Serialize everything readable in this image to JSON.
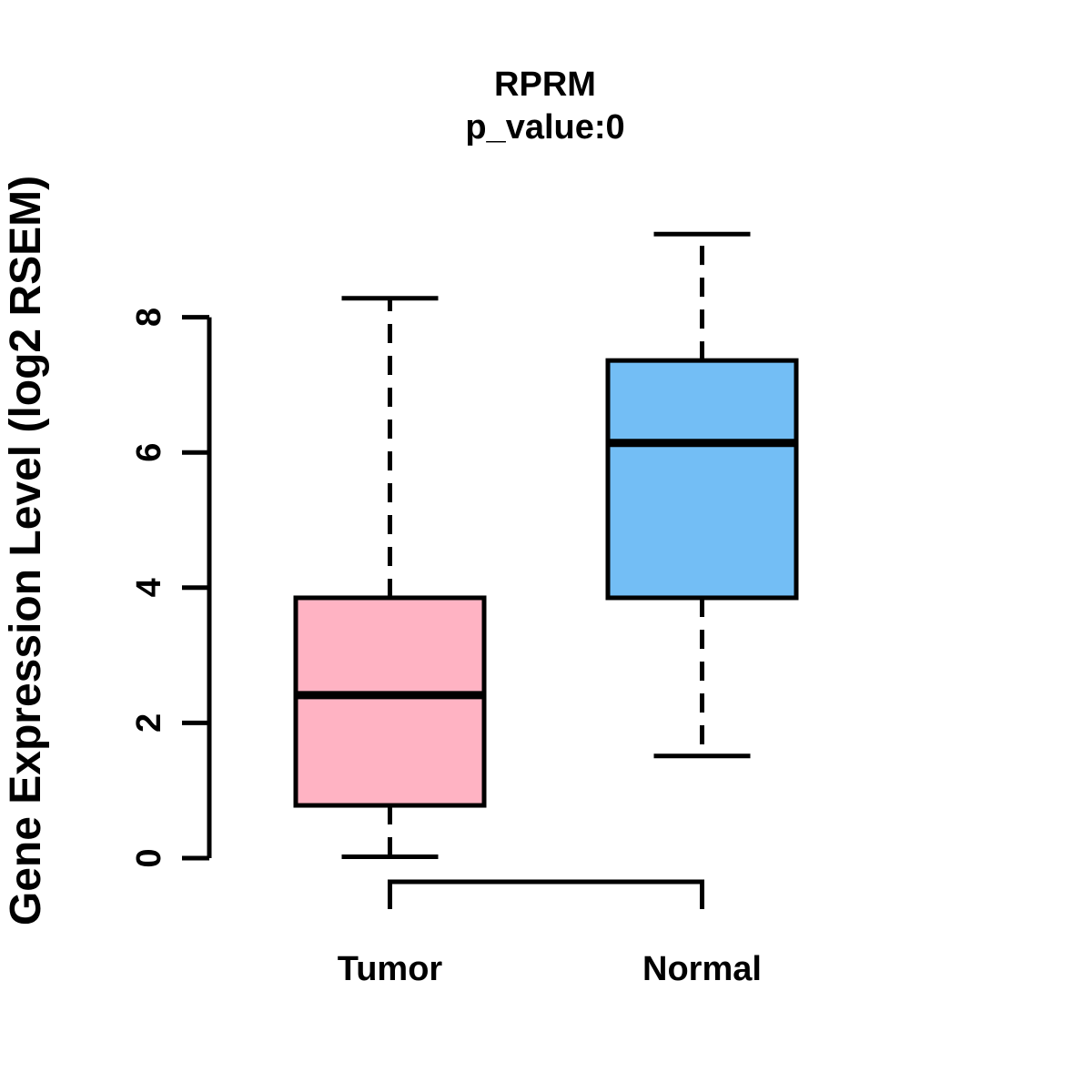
{
  "chart_data": {
    "type": "boxplot",
    "title": "RPRM",
    "subtitle": "p_value:0",
    "ylabel": "Gene Expression Level (log2 RSEM)",
    "xlabel": "",
    "categories": [
      "Tumor",
      "Normal"
    ],
    "yticks": [
      "0",
      "2",
      "4",
      "6",
      "8"
    ],
    "ytick_values": [
      0,
      2,
      4,
      6,
      8
    ],
    "ylim": [
      0,
      9.3
    ],
    "grid": false,
    "legend": "none",
    "series": [
      {
        "name": "Tumor",
        "color": "#ffb3c3",
        "stats": {
          "lower_whisker": 0.02,
          "q1": 0.78,
          "median": 2.41,
          "q3": 3.85,
          "upper_whisker": 8.28
        }
      },
      {
        "name": "Normal",
        "color": "#73bef5",
        "stats": {
          "lower_whisker": 1.51,
          "q1": 3.85,
          "median": 6.14,
          "q3": 7.36,
          "upper_whisker": 9.23
        }
      }
    ],
    "colors": {
      "box_border": "#000000",
      "median_line": "#000000",
      "axis": "#000000",
      "text": "#000000",
      "background": "#ffffff"
    }
  }
}
